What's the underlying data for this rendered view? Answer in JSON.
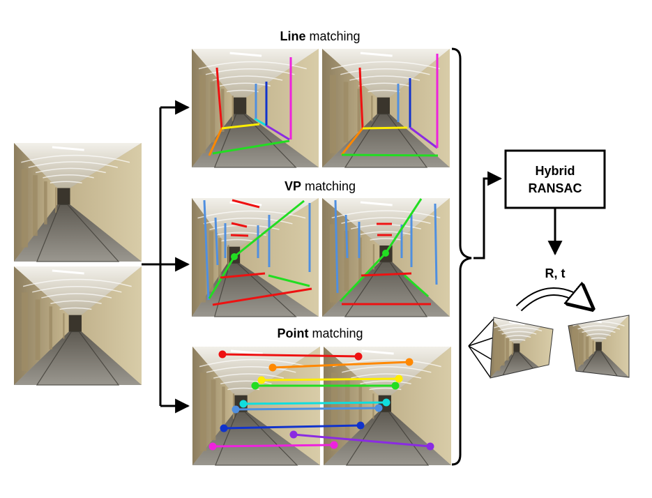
{
  "titles": {
    "line": {
      "bold": "Line",
      "rest": " matching"
    },
    "vp": {
      "bold": "VP",
      "rest": " matching"
    },
    "point": {
      "bold": "Point",
      "rest": " matching"
    }
  },
  "ransac": {
    "line1": "Hybrid",
    "line2": "RANSAC"
  },
  "pose_label": "R, t",
  "colors": {
    "red": "#ee1111",
    "orange": "#ff8800",
    "yellow": "#ffee00",
    "green": "#22dd22",
    "cyan": "#11dddd",
    "lightblue": "#4f8fe0",
    "blue": "#1133cc",
    "purple": "#8a2be2",
    "magenta": "#ee22dd",
    "wall": "#c9b892",
    "floor": "#8a8a82",
    "ceiling": "#e9e6dd",
    "dark": "#4a4336"
  },
  "point_match_colors": [
    "red",
    "orange",
    "yellow",
    "green",
    "cyan",
    "lightblue",
    "blue",
    "purple",
    "magenta"
  ]
}
